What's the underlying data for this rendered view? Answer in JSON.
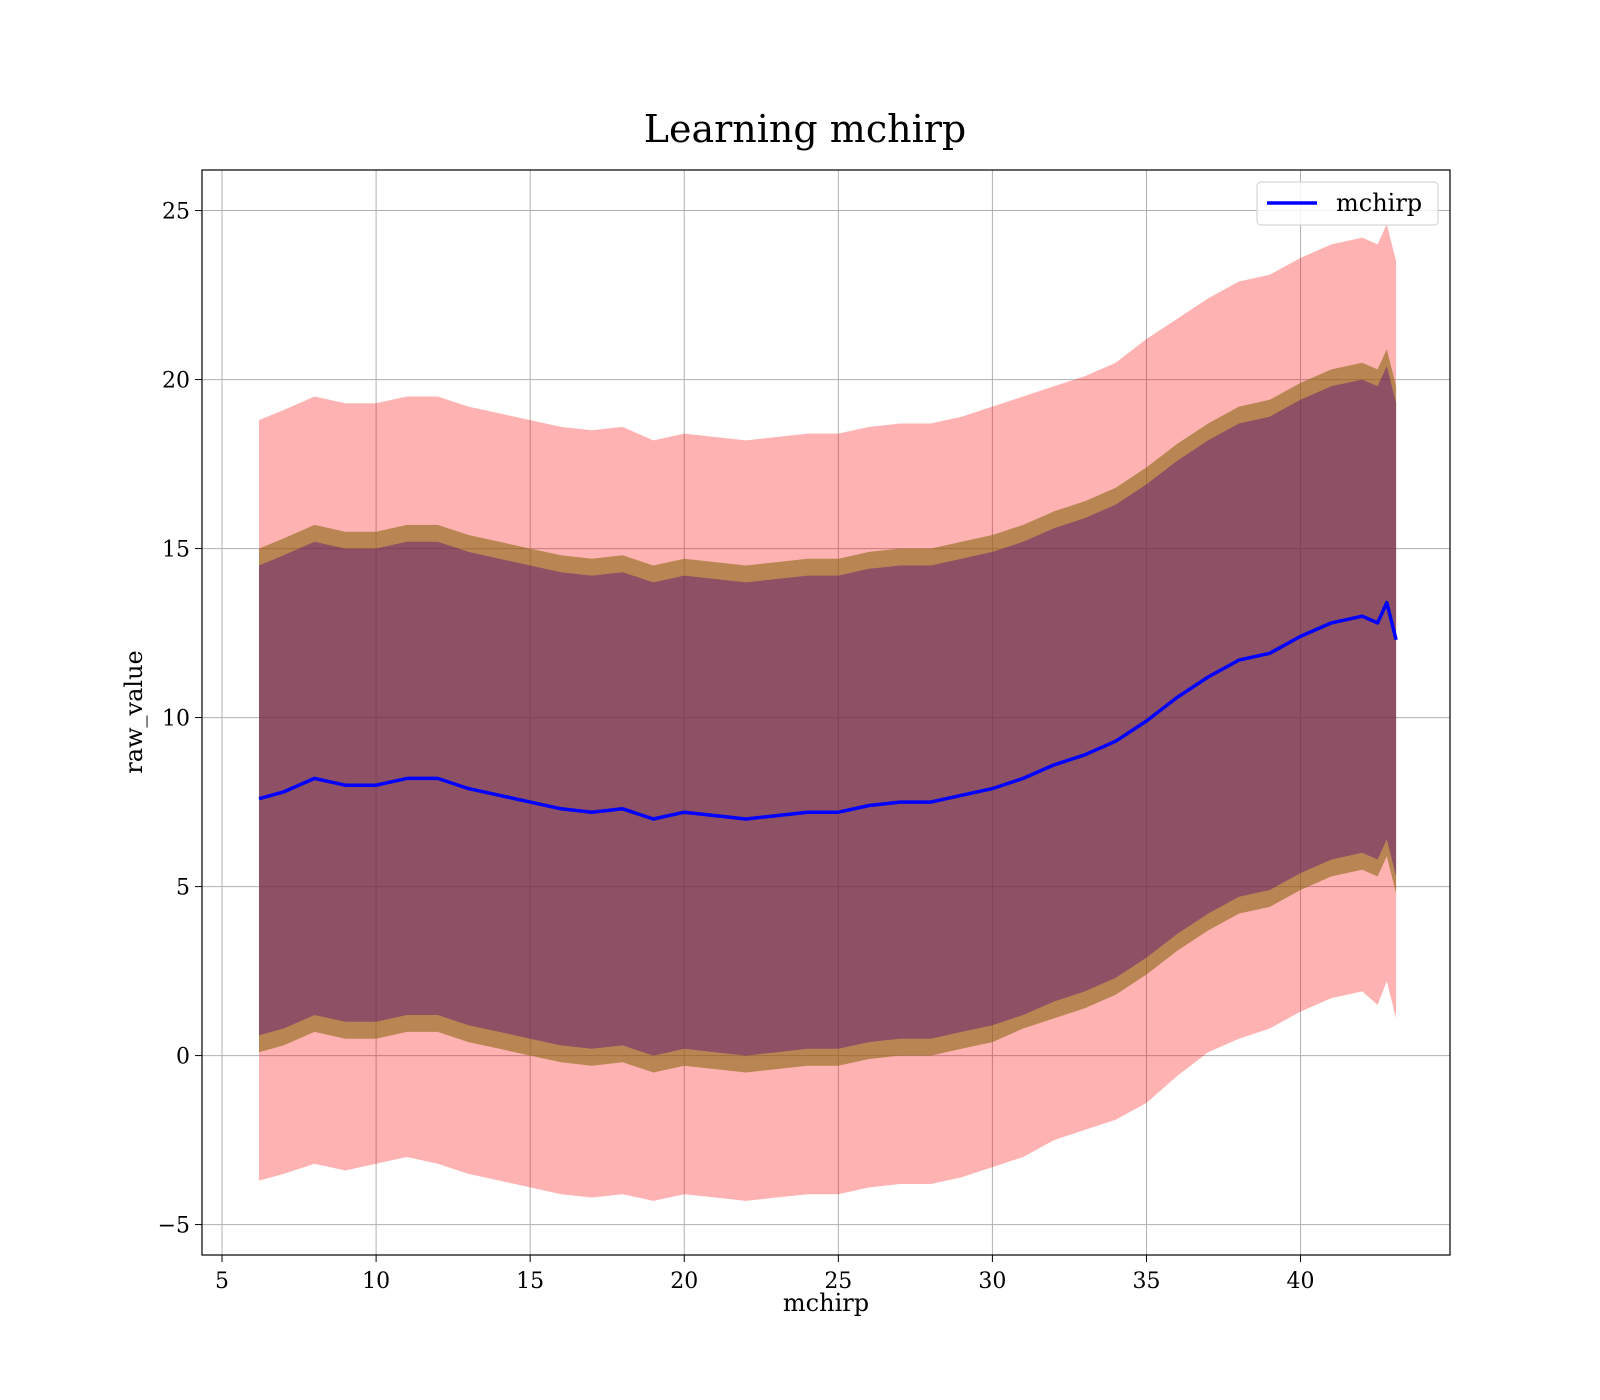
{
  "chart_data": {
    "type": "line",
    "title": "Learning mchirp",
    "xlabel": "mchirp",
    "ylabel": "raw_value",
    "xlim": [
      4.35,
      44.85
    ],
    "ylim": [
      -5.9,
      26.2
    ],
    "xticks": [
      5,
      10,
      15,
      20,
      25,
      30,
      35,
      40
    ],
    "yticks": [
      -5,
      0,
      5,
      10,
      15,
      20,
      25
    ],
    "xtick_labels": [
      "5",
      "10",
      "15",
      "20",
      "25",
      "30",
      "35",
      "40"
    ],
    "ytick_labels": [
      "−5",
      "0",
      "5",
      "10",
      "15",
      "20",
      "25"
    ],
    "grid": true,
    "legend": {
      "position": "top-right",
      "entries": [
        "mchirp"
      ]
    },
    "colors": {
      "line": "#0000ff",
      "outer_band": "#ff0000",
      "middle_band": "#8b6914",
      "inner_band": "#4b0082"
    },
    "x": [
      6.2,
      7,
      8,
      9,
      10,
      11,
      12,
      13,
      14,
      15,
      16,
      17,
      18,
      19,
      20,
      21,
      22,
      23,
      24,
      25,
      26,
      27,
      28,
      29,
      30,
      31,
      32,
      33,
      34,
      35,
      36,
      37,
      38,
      39,
      40,
      41,
      42,
      42.5,
      42.8,
      43.1
    ],
    "series": [
      {
        "name": "mchirp",
        "values": [
          7.6,
          7.8,
          8.2,
          8.0,
          8.0,
          8.2,
          8.2,
          7.9,
          7.7,
          7.5,
          7.3,
          7.2,
          7.3,
          7.0,
          7.2,
          7.1,
          7.0,
          7.1,
          7.2,
          7.2,
          7.4,
          7.5,
          7.5,
          7.7,
          7.9,
          8.2,
          8.6,
          8.9,
          9.3,
          9.9,
          10.6,
          11.2,
          11.7,
          11.9,
          12.4,
          12.8,
          13.0,
          12.8,
          13.4,
          12.3
        ]
      }
    ],
    "bands": [
      {
        "lower": [
          -3.7,
          -3.5,
          -3.2,
          -3.4,
          -3.2,
          -3.0,
          -3.2,
          -3.5,
          -3.7,
          -3.9,
          -4.1,
          -4.2,
          -4.1,
          -4.3,
          -4.1,
          -4.2,
          -4.3,
          -4.2,
          -4.1,
          -4.1,
          -3.9,
          -3.8,
          -3.8,
          -3.6,
          -3.3,
          -3.0,
          -2.5,
          -2.2,
          -1.9,
          -1.4,
          -0.6,
          0.1,
          0.5,
          0.8,
          1.3,
          1.7,
          1.9,
          1.5,
          2.2,
          1.1
        ],
        "upper": [
          18.8,
          19.1,
          19.5,
          19.3,
          19.3,
          19.5,
          19.5,
          19.2,
          19.0,
          18.8,
          18.6,
          18.5,
          18.6,
          18.2,
          18.4,
          18.3,
          18.2,
          18.3,
          18.4,
          18.4,
          18.6,
          18.7,
          18.7,
          18.9,
          19.2,
          19.5,
          19.8,
          20.1,
          20.5,
          21.2,
          21.8,
          22.4,
          22.9,
          23.1,
          23.6,
          24.0,
          24.2,
          24.0,
          24.6,
          23.5
        ]
      },
      {
        "lower": [
          0.1,
          0.3,
          0.7,
          0.5,
          0.5,
          0.7,
          0.7,
          0.4,
          0.2,
          0.0,
          -0.2,
          -0.3,
          -0.2,
          -0.5,
          -0.3,
          -0.4,
          -0.5,
          -0.4,
          -0.3,
          -0.3,
          -0.1,
          0.0,
          0.0,
          0.2,
          0.4,
          0.8,
          1.1,
          1.4,
          1.8,
          2.4,
          3.1,
          3.7,
          4.2,
          4.4,
          4.9,
          5.3,
          5.5,
          5.3,
          5.9,
          4.8
        ],
        "upper": [
          15.0,
          15.3,
          15.7,
          15.5,
          15.5,
          15.7,
          15.7,
          15.4,
          15.2,
          15.0,
          14.8,
          14.7,
          14.8,
          14.5,
          14.7,
          14.6,
          14.5,
          14.6,
          14.7,
          14.7,
          14.9,
          15.0,
          15.0,
          15.2,
          15.4,
          15.7,
          16.1,
          16.4,
          16.8,
          17.4,
          18.1,
          18.7,
          19.2,
          19.4,
          19.9,
          20.3,
          20.5,
          20.3,
          20.9,
          19.8
        ]
      },
      {
        "lower": [
          0.6,
          0.8,
          1.2,
          1.0,
          1.0,
          1.2,
          1.2,
          0.9,
          0.7,
          0.5,
          0.3,
          0.2,
          0.3,
          0.0,
          0.2,
          0.1,
          0.0,
          0.1,
          0.2,
          0.2,
          0.4,
          0.5,
          0.5,
          0.7,
          0.9,
          1.2,
          1.6,
          1.9,
          2.3,
          2.9,
          3.6,
          4.2,
          4.7,
          4.9,
          5.4,
          5.8,
          6.0,
          5.8,
          6.4,
          5.3
        ],
        "upper": [
          14.5,
          14.8,
          15.2,
          15.0,
          15.0,
          15.2,
          15.2,
          14.9,
          14.7,
          14.5,
          14.3,
          14.2,
          14.3,
          14.0,
          14.2,
          14.1,
          14.0,
          14.1,
          14.2,
          14.2,
          14.4,
          14.5,
          14.5,
          14.7,
          14.9,
          15.2,
          15.6,
          15.9,
          16.3,
          16.9,
          17.6,
          18.2,
          18.7,
          18.9,
          19.4,
          19.8,
          20.0,
          19.8,
          20.4,
          19.3
        ]
      }
    ]
  }
}
